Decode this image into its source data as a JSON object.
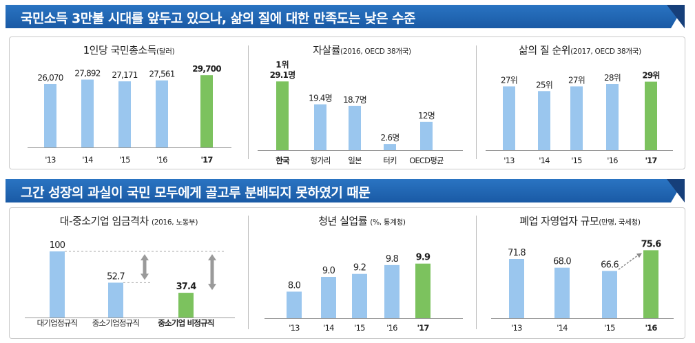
{
  "banners": [
    {
      "text": "국민소득 3만불 시대를 앞두고 있으나, 삶의 질에 대한 만족도는 낮은 수준"
    },
    {
      "text": "그간  성장의 과실이  국민 모두에게 골고루 분배되지 못하였기 때문"
    }
  ],
  "colors": {
    "banner": "#1f62ad",
    "banner_dark": "#17498a",
    "bar": "#9ac6ee",
    "highlight": "#7cc25e",
    "axis": "#999999",
    "arrow": "#999999"
  },
  "panels": [
    {
      "title": "1인당 국민총소득",
      "sub": "(달러)"
    },
    {
      "title": "자살률",
      "sub": "(2016,  OECD 38개국)"
    },
    {
      "title": "삶의 질 순위",
      "sub": "(2017,  OECD 38개국)"
    },
    {
      "title": "대-중소기업 임금격차 ",
      "sub": "(2016,  노동부)"
    },
    {
      "title": "청년 실업률 ",
      "sub": "(%, 통계청)"
    },
    {
      "title": "폐업 자영업자 규모",
      "sub": "(만명, 국세청)"
    }
  ],
  "chart_data": [
    {
      "type": "bar",
      "title": "1인당 국민총소득",
      "unit": "(달러)",
      "categories": [
        "'13",
        "'14",
        "'15",
        "'16",
        "'17"
      ],
      "values": [
        26070,
        27892,
        27171,
        27561,
        29700
      ],
      "labels": [
        "26,070",
        "27,892",
        "27,171",
        "27,561",
        "29,700"
      ],
      "highlight_index": 4,
      "ylim": [
        0,
        34000
      ]
    },
    {
      "type": "bar",
      "title": "자살률",
      "unit": "(2016,  OECD 38개국)",
      "categories": [
        "한국",
        "헝가리",
        "일본",
        "터키",
        "OECD평균"
      ],
      "values": [
        29.1,
        19.4,
        18.7,
        2.6,
        12
      ],
      "labels": [
        "29.1명",
        "19.4명",
        "18.7명",
        "2.6명",
        "12명"
      ],
      "extra_labels": [
        "1위",
        "",
        "",
        "",
        ""
      ],
      "highlight_index": 0,
      "ylim": [
        0,
        35
      ]
    },
    {
      "type": "bar",
      "title": "삶의 질 순위",
      "unit": "(2017,  OECD 38개국)",
      "categories": [
        "'13",
        "'14",
        "'15",
        "'16",
        "'17"
      ],
      "values": [
        27,
        25,
        27,
        28,
        29
      ],
      "labels": [
        "27위",
        "25위",
        "27위",
        "28위",
        "29위"
      ],
      "highlight_index": 4,
      "note": "lower bar = worse rank",
      "ylim": [
        0,
        35
      ]
    },
    {
      "type": "bar",
      "title": "대-중소기업 임금격차",
      "unit": "(2016,  노동부)",
      "categories": [
        "대기업정규직",
        "중소기업정규직",
        "중소기업 비정규직"
      ],
      "values": [
        100,
        52.7,
        37.4
      ],
      "labels": [
        "100",
        "52.7",
        "37.4"
      ],
      "highlight_index": 2,
      "ylim": [
        0,
        125
      ]
    },
    {
      "type": "bar",
      "title": "청년 실업률",
      "unit": "(%, 통계청)",
      "categories": [
        "'13",
        "'14",
        "'15",
        "'16",
        "'17"
      ],
      "values": [
        8.0,
        9.0,
        9.2,
        9.8,
        9.9
      ],
      "labels": [
        "8.0",
        "9.0",
        "9.2",
        "9.8",
        "9.9"
      ],
      "highlight_index": 4,
      "ylim": [
        6.2,
        11.8
      ]
    },
    {
      "type": "bar",
      "title": "폐업 자영업자 규모",
      "unit": "(만명, 국세청)",
      "categories": [
        "'13",
        "'14",
        "'15",
        "'16"
      ],
      "values": [
        71.8,
        68.0,
        66.6,
        75.6
      ],
      "labels": [
        "71.8",
        "68.0",
        "66.6",
        "75.6"
      ],
      "highlight_index": 3,
      "ylim": [
        46,
        82
      ]
    }
  ]
}
